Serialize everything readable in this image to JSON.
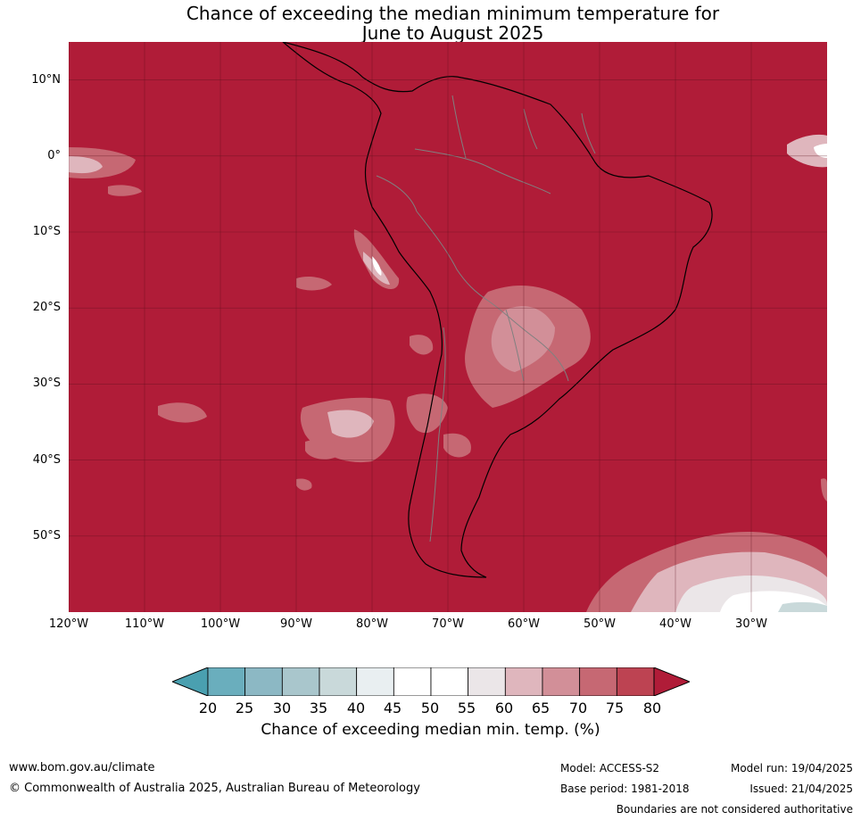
{
  "title": {
    "line1": "Chance of exceeding the median minimum temperature for",
    "line2": "June to August 2025"
  },
  "map": {
    "lat_labels": [
      "10°N",
      "0°",
      "10°S",
      "20°S",
      "30°S",
      "40°S",
      "50°S"
    ],
    "lon_labels": [
      "120°W",
      "110°W",
      "100°W",
      "90°W",
      "80°W",
      "70°W",
      "60°W",
      "50°W",
      "40°W",
      "30°W"
    ],
    "lon_range": [
      -120,
      -20
    ],
    "lat_range": [
      -60,
      15
    ],
    "dominant_category": "80+",
    "colors": {
      "c20": "#4aa0b0",
      "c25": "#6aaebd",
      "c30": "#8cb8c4",
      "c35": "#a9c6cc",
      "c40": "#c9d9da",
      "c45": "#e9eff1",
      "c50": "#ffffff",
      "c55": "#ffffff",
      "c60": "#ebe6e8",
      "c65": "#dfb6bd",
      "c70": "#d28f98",
      "c75": "#c66873",
      "c80": "#bd4352",
      "c80plus": "#b01c38"
    }
  },
  "colorbar": {
    "ticks": [
      "20",
      "25",
      "30",
      "35",
      "40",
      "45",
      "50",
      "55",
      "60",
      "65",
      "70",
      "75",
      "80"
    ],
    "colors": [
      "#6aaebd",
      "#8cb8c4",
      "#a9c6cc",
      "#c9d9da",
      "#e9eff1",
      "#ffffff",
      "#ffffff",
      "#ebe6e8",
      "#dfb6bd",
      "#d28f98",
      "#c66873",
      "#bd4352"
    ],
    "low_extend_color": "#4aa0b0",
    "high_extend_color": "#b01c38",
    "label": "Chance of exceeding median min. temp. (%)"
  },
  "footer": {
    "website": "www.bom.gov.au/climate",
    "copyright": "© Commonwealth of Australia 2025, Australian Bureau of Meteorology",
    "model": "Model: ACCESS-S2",
    "base_period": "Base period: 1981-2018",
    "model_run": "Model run: 19/04/2025",
    "issued": "Issued: 21/04/2025",
    "disclaimer": "Boundaries are not considered authoritative"
  }
}
